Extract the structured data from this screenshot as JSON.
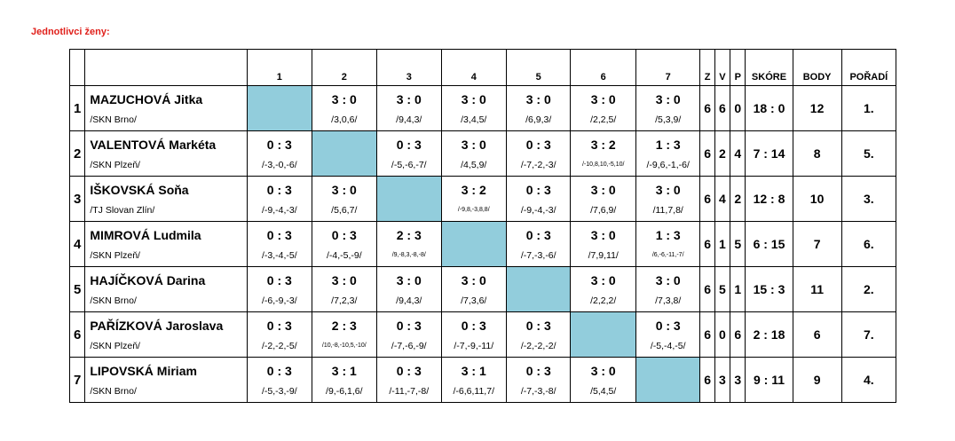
{
  "title": "Jednotlivci ženy:",
  "headers": {
    "cols": [
      "1",
      "2",
      "3",
      "4",
      "5",
      "6",
      "7"
    ],
    "z": "Z",
    "v": "V",
    "p": "P",
    "skore": "SKÓRE",
    "body": "BODY",
    "poradi": "POŘADÍ"
  },
  "players": [
    {
      "num": "1",
      "name": "MAZUCHOVÁ Jitka",
      "club": "/SKN Brno/",
      "results": [
        null,
        {
          "score": "3 : 0",
          "sets": "/3,0,6/"
        },
        {
          "score": "3 : 0",
          "sets": "/9,4,3/"
        },
        {
          "score": "3 : 0",
          "sets": "/3,4,5/"
        },
        {
          "score": "3 : 0",
          "sets": "/6,9,3/"
        },
        {
          "score": "3 : 0",
          "sets": "/2,2,5/"
        },
        {
          "score": "3 : 0",
          "sets": "/5,3,9/"
        }
      ],
      "z": "6",
      "v": "6",
      "p": "0",
      "skore": "18 : 0",
      "body": "12",
      "poradi": "1."
    },
    {
      "num": "2",
      "name": "VALENTOVÁ Markéta",
      "club": "/SKN Plzeň/",
      "results": [
        {
          "score": "0 : 3",
          "sets": "/-3,-0,-6/"
        },
        null,
        {
          "score": "0 : 3",
          "sets": "/-5,-6,-7/"
        },
        {
          "score": "3 : 0",
          "sets": "/4,5,9/"
        },
        {
          "score": "0 : 3",
          "sets": "/-7,-2,-3/"
        },
        {
          "score": "3 : 2",
          "sets": "/-10,8,10,-5,10/"
        },
        {
          "score": "1 : 3",
          "sets": "/-9,6,-1,-6/"
        }
      ],
      "z": "6",
      "v": "2",
      "p": "4",
      "skore": "7 : 14",
      "body": "8",
      "poradi": "5."
    },
    {
      "num": "3",
      "name": "IŠKOVSKÁ Soňa",
      "club": "/TJ Slovan Zlín/",
      "results": [
        {
          "score": "0 : 3",
          "sets": "/-9,-4,-3/"
        },
        {
          "score": "3 : 0",
          "sets": "/5,6,7/"
        },
        null,
        {
          "score": "3 : 2",
          "sets": "/-9,8,-3,8,8/"
        },
        {
          "score": "0 : 3",
          "sets": "/-9,-4,-3/"
        },
        {
          "score": "3 : 0",
          "sets": "/7,6,9/"
        },
        {
          "score": "3 : 0",
          "sets": "/11,7,8/"
        }
      ],
      "z": "6",
      "v": "4",
      "p": "2",
      "skore": "12 : 8",
      "body": "10",
      "poradi": "3."
    },
    {
      "num": "4",
      "name": "MIMROVÁ Ludmila",
      "club": "/SKN Plzeň/",
      "results": [
        {
          "score": "0 : 3",
          "sets": "/-3,-4,-5/"
        },
        {
          "score": "0 : 3",
          "sets": "/-4,-5,-9/"
        },
        {
          "score": "2 : 3",
          "sets": "/9,-8,3,-8,-8/"
        },
        null,
        {
          "score": "0 : 3",
          "sets": "/-7,-3,-6/"
        },
        {
          "score": "3 : 0",
          "sets": "/7,9,11/"
        },
        {
          "score": "1 : 3",
          "sets": "/6,-6,-11,-7/"
        }
      ],
      "z": "6",
      "v": "1",
      "p": "5",
      "skore": "6 : 15",
      "body": "7",
      "poradi": "6."
    },
    {
      "num": "5",
      "name": "HAJÍČKOVÁ Darina",
      "club": "/SKN Brno/",
      "results": [
        {
          "score": "0 : 3",
          "sets": "/-6,-9,-3/"
        },
        {
          "score": "3 : 0",
          "sets": "/7,2,3/"
        },
        {
          "score": "3 : 0",
          "sets": "/9,4,3/"
        },
        {
          "score": "3 : 0",
          "sets": "/7,3,6/"
        },
        null,
        {
          "score": "3 : 0",
          "sets": "/2,2,2/"
        },
        {
          "score": "3 : 0",
          "sets": "/7,3,8/"
        }
      ],
      "z": "6",
      "v": "5",
      "p": "1",
      "skore": "15 : 3",
      "body": "11",
      "poradi": "2."
    },
    {
      "num": "6",
      "name": "PAŘÍZKOVÁ Jaroslava",
      "club": "/SKN Plzeň/",
      "results": [
        {
          "score": "0 : 3",
          "sets": "/-2,-2,-5/"
        },
        {
          "score": "2 : 3",
          "sets": "/10,-8,-10,5,-10/"
        },
        {
          "score": "0 : 3",
          "sets": "/-7,-6,-9/"
        },
        {
          "score": "0 : 3",
          "sets": "/-7,-9,-11/"
        },
        {
          "score": "0 : 3",
          "sets": "/-2,-2,-2/"
        },
        null,
        {
          "score": "0 : 3",
          "sets": "/-5,-4,-5/"
        }
      ],
      "z": "6",
      "v": "0",
      "p": "6",
      "skore": "2 : 18",
      "body": "6",
      "poradi": "7."
    },
    {
      "num": "7",
      "name": "LIPOVSKÁ Miriam",
      "club": "/SKN Brno/",
      "results": [
        {
          "score": "0 : 3",
          "sets": "/-5,-3,-9/"
        },
        {
          "score": "3 : 1",
          "sets": "/9,-6,1,6/"
        },
        {
          "score": "0 : 3",
          "sets": "/-11,-7,-8/"
        },
        {
          "score": "3 : 1",
          "sets": "/-6,6,11,7/"
        },
        {
          "score": "0 : 3",
          "sets": "/-7,-3,-8/"
        },
        {
          "score": "3 : 0",
          "sets": "/5,4,5/"
        },
        null
      ],
      "z": "6",
      "v": "3",
      "p": "3",
      "skore": "9 : 11",
      "body": "9",
      "poradi": "4."
    }
  ],
  "colors": {
    "title": "#e0201b",
    "self_cell": "#92cddc"
  }
}
